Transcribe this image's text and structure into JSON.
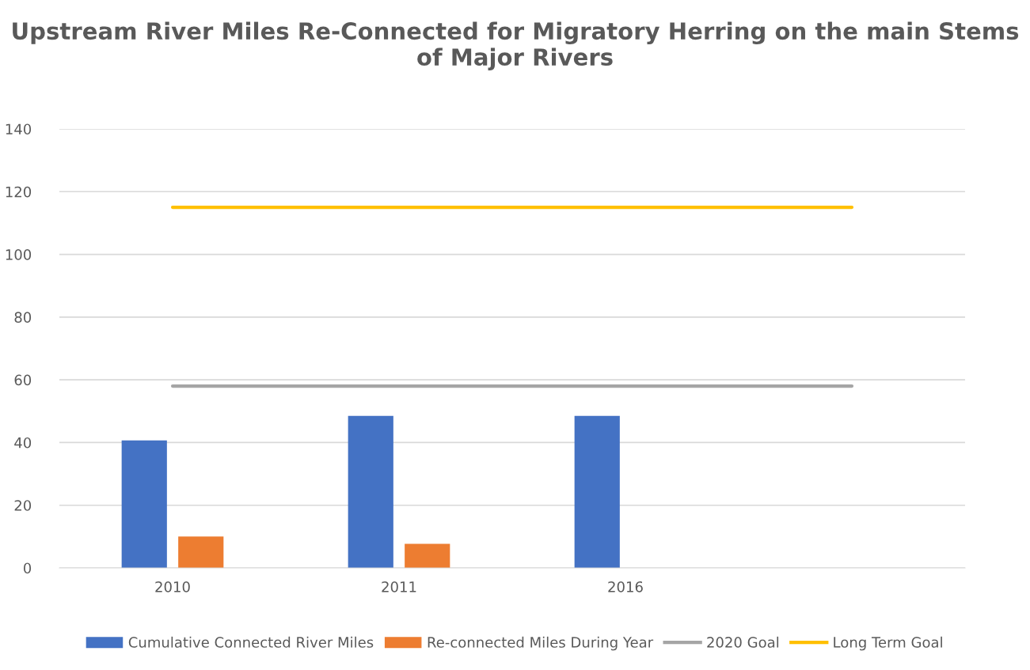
{
  "chart_data": {
    "type": "bar",
    "title": "Upstream River Miles Re-Connected for Migratory Herring on the main Stems of Major Rivers",
    "categories": [
      "2010",
      "2011",
      "2016",
      null
    ],
    "series": [
      {
        "name": "Cumulative Connected River Miles",
        "color": "#4472c4",
        "values": [
          40.7,
          48.5,
          48.5,
          null
        ]
      },
      {
        "name": "Re-connected Miles During Year",
        "color": "#ed7d31",
        "values": [
          10,
          7.7,
          null,
          null
        ]
      },
      {
        "name": "2020 Goal",
        "type": "line",
        "color": "#a5a5a5",
        "values": [
          58,
          58,
          58,
          58
        ]
      },
      {
        "name": "Long Term Goal",
        "type": "line",
        "color": "#ffc000",
        "values": [
          115,
          115,
          115,
          115
        ]
      }
    ],
    "ylim": [
      0,
      140
    ],
    "yticks": [
      0,
      20,
      40,
      60,
      80,
      100,
      120,
      140
    ],
    "grid": "y",
    "legend": "bottom",
    "marker": "none"
  }
}
